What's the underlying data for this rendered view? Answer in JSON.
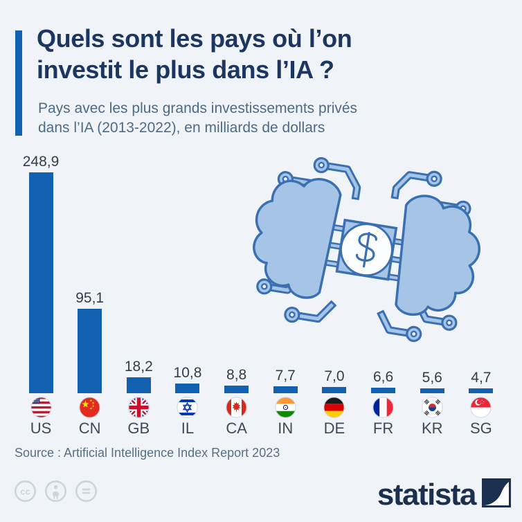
{
  "header": {
    "title_line1": "Quels sont les pays où l’on",
    "title_line2": "investit le plus dans l’IA ?",
    "subtitle_line1": "Pays avec les plus grands investissements privés",
    "subtitle_line2": "dans l’IA (2013-2022), en milliards de dollars"
  },
  "chart_data": {
    "type": "bar",
    "title": "Quels sont les pays où l’on investit le plus dans l’IA ?",
    "subtitle": "Pays avec les plus grands investissements privés dans l’IA (2013-2022), en milliards de dollars",
    "unit": "milliards de dollars",
    "categories": [
      "US",
      "CN",
      "GB",
      "IL",
      "CA",
      "IN",
      "DE",
      "FR",
      "KR",
      "SG"
    ],
    "values": [
      248.9,
      95.1,
      18.2,
      10.8,
      8.8,
      7.7,
      7.0,
      6.6,
      5.6,
      4.7
    ],
    "value_labels": [
      "248,9",
      "95,1",
      "18,2",
      "10,8",
      "8,8",
      "7,7",
      "7,0",
      "6,6",
      "5,6",
      "4,7"
    ],
    "flag_icons": [
      "us-flag-icon",
      "cn-flag-icon",
      "gb-flag-icon",
      "il-flag-icon",
      "ca-flag-icon",
      "in-flag-icon",
      "de-flag-icon",
      "fr-flag-icon",
      "kr-flag-icon",
      "sg-flag-icon"
    ],
    "bar_color": "#1161b0",
    "ylim": [
      0,
      260
    ],
    "grid": false,
    "legend": false
  },
  "illustration": {
    "name": "ai-brains-dollar-circuit-illustration",
    "dollar_symbol": "$"
  },
  "source": "Source : Artificial Intelligence Index Report 2023",
  "footer": {
    "brand": "statista",
    "license_icons": [
      "cc-icon",
      "attribution-icon",
      "no-derivatives-icon"
    ]
  },
  "colors": {
    "background": "#f0f4f8",
    "accent_blue": "#1161b0",
    "title_navy": "#1b3660",
    "subtitle_slate": "#4e6a84",
    "value_text": "#313d47",
    "illustration_light": "#a5c4e6",
    "illustration_dark": "#3a70b2",
    "brand_navy": "#1b2f4e",
    "license_gray": "#ccd4dc"
  }
}
